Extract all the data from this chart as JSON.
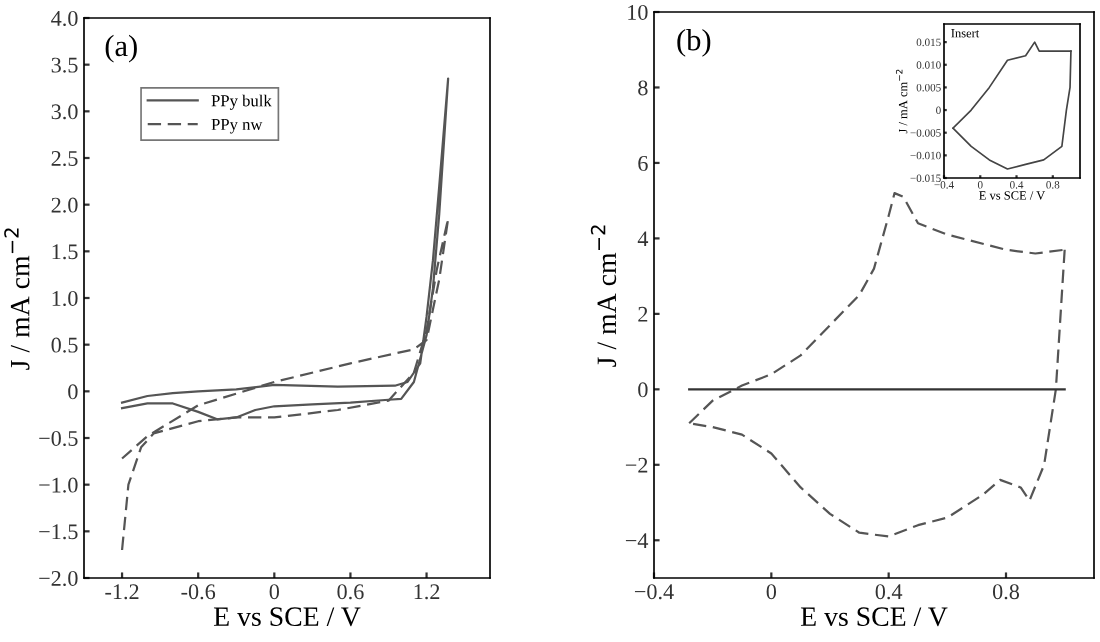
{
  "chart_data": [
    {
      "type": "line",
      "xlabel": "E vs SCE / V",
      "ylabel": "J / mA cm$^{−2}$",
      "annotations": [
        "(a)"
      ],
      "xlim": [
        -1.5,
        1.7
      ],
      "xticks": [
        -1.2,
        -0.6,
        0,
        0.6,
        1.2
      ],
      "ylim": [
        -2.0,
        4.0
      ],
      "yticks": [
        {
          "value": -2.0,
          "label": "−2.0"
        },
        {
          "value": -1.5,
          "label": "−1.5"
        },
        {
          "value": -1.0,
          "label": "−1.0"
        },
        {
          "value": -0.5,
          "label": "−0.5"
        },
        {
          "value": 0,
          "label": "0"
        },
        {
          "value": 0.5,
          "label": "0.5"
        },
        {
          "value": 1.0,
          "label": "1.0"
        },
        {
          "value": 1.5,
          "label": "1.5"
        },
        {
          "value": 2.0,
          "label": "2.0"
        },
        {
          "value": 2.5,
          "label": "2.5"
        },
        {
          "value": 3.0,
          "label": "3.0"
        },
        {
          "value": 3.5,
          "label": "3.5"
        },
        {
          "value": 4.0,
          "label": "4.0"
        }
      ],
      "grid": false,
      "legend": "top left",
      "series": [
        {
          "name": "PPy bulk",
          "color": "#555555",
          "line_style": "solid",
          "x": [
            -1.2,
            -1.0,
            -0.8,
            -0.6,
            -0.45,
            -0.3,
            -0.15,
            0,
            0.3,
            0.6,
            0.9,
            1.0,
            1.1,
            1.2,
            1.25,
            1.3,
            1.37,
            1.3,
            1.25,
            1.2,
            1.15,
            1.05,
            0.95,
            0.5,
            0,
            -0.3,
            -0.6,
            -0.8,
            -1.0,
            -1.2
          ],
          "values": [
            -0.18,
            -0.13,
            -0.13,
            -0.22,
            -0.3,
            -0.28,
            -0.2,
            -0.16,
            -0.14,
            -0.12,
            -0.09,
            -0.08,
            0.1,
            0.6,
            1.1,
            1.9,
            3.35,
            2.2,
            1.4,
            0.8,
            0.3,
            0.1,
            0.06,
            0.05,
            0.07,
            0.02,
            0.0,
            -0.02,
            -0.05,
            -0.12
          ]
        },
        {
          "name": "PPy nw",
          "color": "#555555",
          "line_style": "dashed",
          "x": [
            -1.2,
            -1.15,
            -1.05,
            -0.95,
            -0.6,
            -0.3,
            0,
            0.5,
            0.9,
            1.1,
            1.2,
            1.28,
            1.37,
            1.3,
            1.2,
            1.1,
            0.6,
            0,
            -0.6,
            -1.0,
            -1.2
          ],
          "values": [
            -1.7,
            -1.0,
            -0.6,
            -0.45,
            -0.32,
            -0.28,
            -0.28,
            -0.2,
            -0.1,
            0.2,
            0.65,
            1.3,
            1.85,
            1.2,
            0.55,
            0.45,
            0.3,
            0.1,
            -0.15,
            -0.48,
            -0.72
          ]
        }
      ]
    },
    {
      "type": "line",
      "xlabel": "E vs SCE / V",
      "ylabel": "J / mA cm$^{−2}$",
      "annotations": [
        "(b)"
      ],
      "xlim": [
        -0.4,
        1.1
      ],
      "xticks": [
        {
          "value": -0.4,
          "label": "−0.4"
        },
        0,
        0.4,
        0.8
      ],
      "ylim": [
        -5,
        10
      ],
      "yticks": [
        {
          "value": -4,
          "label": "−4"
        },
        {
          "value": -2,
          "label": "−2"
        },
        0,
        2,
        4,
        6,
        8,
        10
      ],
      "grid": false,
      "series": [
        {
          "color": "#555555",
          "line_style": "dashed",
          "x": [
            -0.28,
            -0.2,
            -0.1,
            0,
            0.1,
            0.2,
            0.3,
            0.35,
            0.4,
            0.42,
            0.45,
            0.5,
            0.6,
            0.8,
            0.9,
            1.0
          ],
          "values": [
            -0.9,
            -0.3,
            0.1,
            0.4,
            0.9,
            1.7,
            2.5,
            3.2,
            4.6,
            5.2,
            5.1,
            4.4,
            4.1,
            3.7,
            3.6,
            3.7
          ]
        },
        {
          "color": "#555555",
          "line_style": "dashed",
          "x": [
            1.0,
            0.97,
            0.93,
            0.88,
            0.85,
            0.78,
            0.72,
            0.6,
            0.5,
            0.4,
            0.3,
            0.2,
            0.1,
            0,
            -0.1,
            -0.2,
            -0.28
          ],
          "values": [
            3.7,
            0,
            -2.0,
            -2.95,
            -2.6,
            -2.4,
            -2.8,
            -3.4,
            -3.6,
            -3.9,
            -3.8,
            -3.3,
            -2.6,
            -1.7,
            -1.2,
            -1.0,
            -0.9
          ]
        },
        {
          "color": "#333333",
          "line_style": "solid",
          "x": [
            -0.28,
            1.0
          ],
          "values": [
            0,
            0
          ]
        }
      ]
    },
    {
      "type": "line",
      "xlabel": "E vs SCE / V",
      "ylabel": "J / mA cm$^{−2}$",
      "annotations": [
        "Insert"
      ],
      "xlim": [
        -0.4,
        1.1
      ],
      "xticks": [
        {
          "value": -0.4,
          "label": "−0.4"
        },
        0,
        0.4,
        0.8
      ],
      "ylim": [
        -0.015,
        0.019
      ],
      "yticks": [
        {
          "value": -0.015,
          "label": "−0.015"
        },
        {
          "value": -0.01,
          "label": "−0.010"
        },
        {
          "value": -0.005,
          "label": "−0.005"
        },
        0,
        0.005,
        {
          "value": 0.01,
          "label": "0.010"
        },
        0.015
      ],
      "grid": false,
      "series": [
        {
          "color": "#444444",
          "line_style": "solid",
          "x": [
            -0.3,
            -0.1,
            0.1,
            0.3,
            0.5,
            0.6,
            0.65,
            0.8,
            1.0
          ],
          "values": [
            -0.004,
            0.0,
            0.005,
            0.011,
            0.012,
            0.015,
            0.013,
            0.013,
            0.013
          ]
        },
        {
          "color": "#444444",
          "line_style": "solid",
          "x": [
            1.0,
            0.99,
            0.95,
            0.9,
            0.7,
            0.5,
            0.3,
            0.1,
            -0.1,
            -0.3
          ],
          "values": [
            0.013,
            0.005,
            0.0,
            -0.008,
            -0.011,
            -0.012,
            -0.013,
            -0.011,
            -0.008,
            -0.004
          ]
        }
      ]
    }
  ]
}
